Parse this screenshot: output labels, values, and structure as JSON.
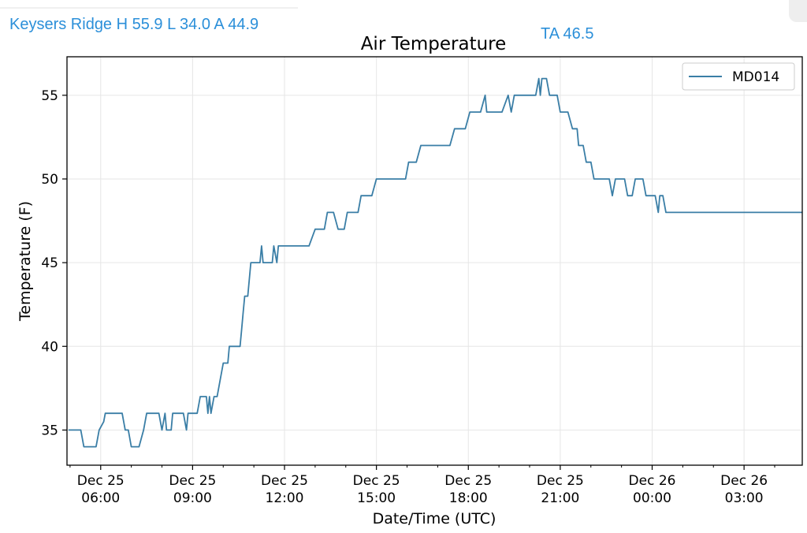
{
  "header": {
    "station_summary": "Keysers Ridge H 55.9 L 34.0 A 44.9",
    "ta_text": "TA 46.5"
  },
  "colors": {
    "accent_text": "#2b8fd9",
    "series_line": "#3a7ea6",
    "grid": "#e6e6e6"
  },
  "chart_data": {
    "type": "line",
    "title": "Air Temperature",
    "xlabel": "Date/Time (UTC)",
    "ylabel": "Temperature (F)",
    "x_unit": "hours since Dec 25 00:00 UTC",
    "xlim": [
      4.9,
      28.9
    ],
    "ylim": [
      32.9,
      57.3
    ],
    "grid": true,
    "legend_position": "top-right",
    "y_ticks": [
      35,
      40,
      45,
      50,
      55
    ],
    "x_ticks": [
      {
        "value": 6,
        "line1": "Dec 25",
        "line2": "06:00"
      },
      {
        "value": 9,
        "line1": "Dec 25",
        "line2": "09:00"
      },
      {
        "value": 12,
        "line1": "Dec 25",
        "line2": "12:00"
      },
      {
        "value": 15,
        "line1": "Dec 25",
        "line2": "15:00"
      },
      {
        "value": 18,
        "line1": "Dec 25",
        "line2": "18:00"
      },
      {
        "value": 21,
        "line1": "Dec 25",
        "line2": "21:00"
      },
      {
        "value": 24,
        "line1": "Dec 26",
        "line2": "00:00"
      },
      {
        "value": 27,
        "line1": "Dec 26",
        "line2": "03:00"
      }
    ],
    "series": [
      {
        "name": "MD014",
        "points": [
          [
            4.95,
            35
          ],
          [
            5.35,
            35
          ],
          [
            5.45,
            34
          ],
          [
            5.85,
            34
          ],
          [
            5.95,
            35
          ],
          [
            6.1,
            35.5
          ],
          [
            6.15,
            36
          ],
          [
            6.7,
            36
          ],
          [
            6.8,
            35
          ],
          [
            6.9,
            35
          ],
          [
            7.0,
            34
          ],
          [
            7.25,
            34
          ],
          [
            7.4,
            35
          ],
          [
            7.5,
            36
          ],
          [
            7.9,
            36
          ],
          [
            8.0,
            35
          ],
          [
            8.1,
            36
          ],
          [
            8.15,
            35
          ],
          [
            8.3,
            35
          ],
          [
            8.35,
            36
          ],
          [
            8.65,
            36
          ],
          [
            8.7,
            36
          ],
          [
            8.8,
            35
          ],
          [
            8.85,
            36
          ],
          [
            9.15,
            36
          ],
          [
            9.25,
            37
          ],
          [
            9.45,
            37
          ],
          [
            9.5,
            36
          ],
          [
            9.55,
            37
          ],
          [
            9.6,
            36
          ],
          [
            9.7,
            37
          ],
          [
            9.8,
            37
          ],
          [
            9.9,
            38
          ],
          [
            10.0,
            39
          ],
          [
            10.15,
            39
          ],
          [
            10.2,
            40
          ],
          [
            10.55,
            40
          ],
          [
            10.6,
            41
          ],
          [
            10.65,
            42
          ],
          [
            10.7,
            43
          ],
          [
            10.8,
            43
          ],
          [
            10.9,
            45
          ],
          [
            11.2,
            45
          ],
          [
            11.25,
            46
          ],
          [
            11.3,
            45
          ],
          [
            11.6,
            45
          ],
          [
            11.65,
            46
          ],
          [
            11.75,
            45
          ],
          [
            11.8,
            46
          ],
          [
            12.5,
            46
          ],
          [
            12.8,
            46
          ],
          [
            13.0,
            47
          ],
          [
            13.3,
            47
          ],
          [
            13.4,
            48
          ],
          [
            13.6,
            48
          ],
          [
            13.75,
            47
          ],
          [
            13.95,
            47
          ],
          [
            14.05,
            48
          ],
          [
            14.4,
            48
          ],
          [
            14.5,
            49
          ],
          [
            14.85,
            49
          ],
          [
            15.0,
            50
          ],
          [
            15.3,
            50
          ],
          [
            15.95,
            50
          ],
          [
            16.05,
            51
          ],
          [
            16.3,
            51
          ],
          [
            16.45,
            52
          ],
          [
            16.6,
            52
          ],
          [
            17.4,
            52
          ],
          [
            17.55,
            53
          ],
          [
            17.9,
            53
          ],
          [
            18.05,
            54
          ],
          [
            18.4,
            54
          ],
          [
            18.55,
            55
          ],
          [
            18.6,
            54
          ],
          [
            19.1,
            54
          ],
          [
            19.3,
            55
          ],
          [
            19.4,
            54
          ],
          [
            19.5,
            55
          ],
          [
            19.85,
            55
          ],
          [
            20.2,
            55
          ],
          [
            20.3,
            56
          ],
          [
            20.35,
            55
          ],
          [
            20.4,
            56
          ],
          [
            20.55,
            56
          ],
          [
            20.65,
            55
          ],
          [
            20.9,
            55
          ],
          [
            21.0,
            54
          ],
          [
            21.25,
            54
          ],
          [
            21.4,
            53
          ],
          [
            21.55,
            53
          ],
          [
            21.6,
            52
          ],
          [
            21.75,
            52
          ],
          [
            21.85,
            51
          ],
          [
            22.0,
            51
          ],
          [
            22.1,
            50
          ],
          [
            22.6,
            50
          ],
          [
            22.7,
            49
          ],
          [
            22.8,
            50
          ],
          [
            23.1,
            50
          ],
          [
            23.2,
            49
          ],
          [
            23.35,
            49
          ],
          [
            23.45,
            50
          ],
          [
            23.7,
            50
          ],
          [
            23.8,
            49
          ],
          [
            24.1,
            49
          ],
          [
            24.2,
            48
          ],
          [
            24.25,
            49
          ],
          [
            24.35,
            49
          ],
          [
            24.45,
            48
          ],
          [
            25.3,
            48
          ],
          [
            28.9,
            48
          ]
        ]
      }
    ]
  }
}
